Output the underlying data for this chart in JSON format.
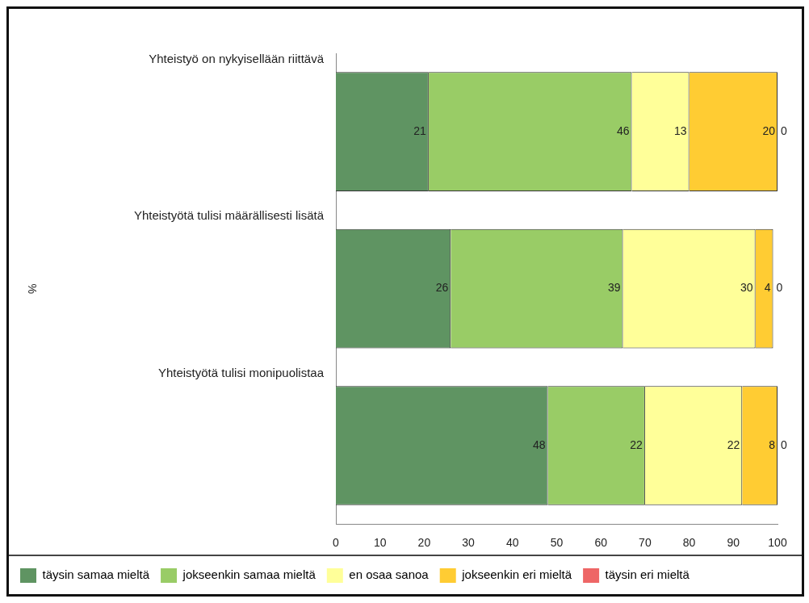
{
  "chart_data": {
    "type": "bar",
    "orientation": "horizontal",
    "stacked": true,
    "annotations": [
      "%"
    ],
    "categories": [
      "Yhteistyö on nykyisellään riittävä",
      "Yhteistyötä tulisi määrällisesti lisätä",
      "Yhteistyötä tulisi monipuolistaa"
    ],
    "series": [
      {
        "name": "täysin samaa mieltä",
        "color": "#5f9462",
        "values": [
          21,
          26,
          48
        ]
      },
      {
        "name": "jokseenkin samaa mieltä",
        "color": "#99cc66",
        "values": [
          46,
          39,
          22
        ]
      },
      {
        "name": "en osaa sanoa",
        "color": "#ffff99",
        "values": [
          13,
          30,
          22
        ]
      },
      {
        "name": "jokseenkin eri mieltä",
        "color": "#ffcc33",
        "values": [
          20,
          4,
          8
        ]
      },
      {
        "name": "täysin eri mieltä",
        "color": "#ee6666",
        "values": [
          0,
          0,
          0
        ]
      }
    ],
    "xlim": [
      0,
      100
    ],
    "xticks": [
      0,
      10,
      20,
      30,
      40,
      50,
      60,
      70,
      80,
      90,
      100
    ],
    "grid": false,
    "legend": "bottom",
    "data_labels": true
  }
}
